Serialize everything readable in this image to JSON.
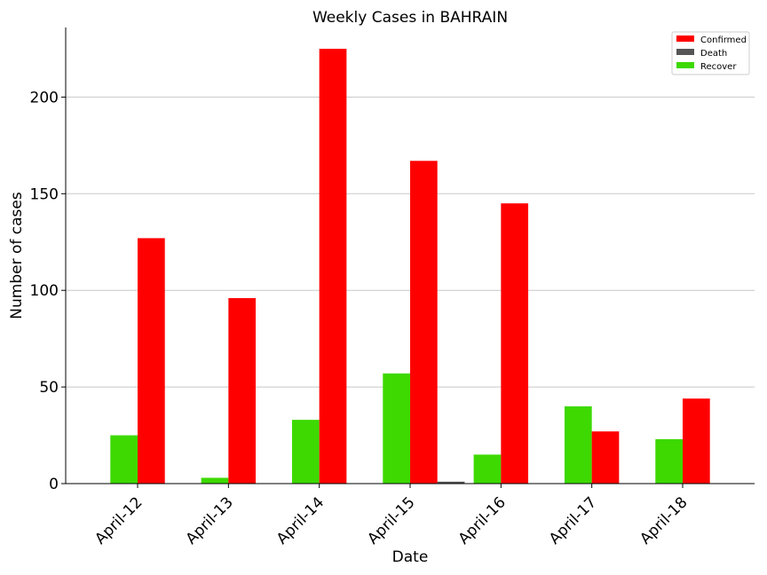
{
  "chart_data": {
    "type": "bar",
    "title": "Weekly Cases in BAHRAIN",
    "xlabel": "Date",
    "ylabel": "Number of cases",
    "categories": [
      "April-12",
      "April-13",
      "April-14",
      "April-15",
      "April-16",
      "April-17",
      "April-18"
    ],
    "series": [
      {
        "name": "Recover",
        "color": "#3dd900",
        "values": [
          25,
          3,
          33,
          57,
          15,
          40,
          23
        ]
      },
      {
        "name": "Confirmed",
        "color": "#ff0000",
        "values": [
          127,
          96,
          225,
          167,
          145,
          27,
          44
        ]
      },
      {
        "name": "Death",
        "color": "#555555",
        "values": [
          0,
          0,
          0,
          1,
          0,
          0,
          0
        ]
      }
    ],
    "legend_order": [
      "Confirmed",
      "Death",
      "Recover"
    ],
    "ylim": [
      0,
      236
    ],
    "yticks": [
      0,
      50,
      100,
      150,
      200
    ],
    "grid": "horizontal",
    "legend_position": "top-right"
  }
}
